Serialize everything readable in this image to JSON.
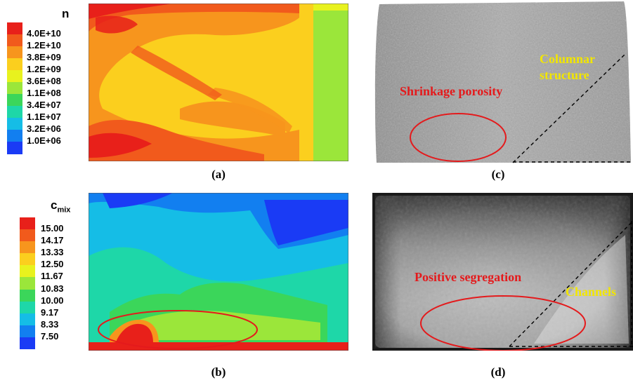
{
  "legend_n": {
    "title": "n",
    "labels": [
      "4.0E+10",
      "1.2E+10",
      "3.8E+09",
      "1.2E+09",
      "3.6E+08",
      "1.1E+08",
      "3.4E+07",
      "1.1E+07",
      "3.2E+06",
      "1.0E+06"
    ],
    "colors": [
      "#e8201a",
      "#f15a1c",
      "#f7951d",
      "#fbcf1e",
      "#e8f21e",
      "#9be63a",
      "#3bd65a",
      "#1ed7a8",
      "#15bde6",
      "#127ff0",
      "#1a3bf5"
    ]
  },
  "legend_c": {
    "title": "c",
    "subscript": "mix",
    "labels": [
      "15.00",
      "14.17",
      "13.33",
      "12.50",
      "11.67",
      "10.83",
      "10.00",
      "9.17",
      "8.33",
      "7.50"
    ],
    "colors": [
      "#e8201a",
      "#f15a1c",
      "#f7951d",
      "#fbcf1e",
      "#e8f21e",
      "#9be63a",
      "#3bd65a",
      "#1ed7a8",
      "#15bde6",
      "#127ff0",
      "#1a3bf5"
    ]
  },
  "captions": {
    "a": "(a)",
    "b": "(b)",
    "c": "(c)",
    "d": "(d)"
  },
  "annotations": {
    "shrinkage": "Shrinkage porosity",
    "columnar_line1": "Columnar",
    "columnar_line2": "structure",
    "positive": "Positive segregation",
    "channels": "Channels"
  },
  "colors": {
    "annotation_red": "#e41a1c",
    "annotation_yellow": "#f2e600"
  }
}
